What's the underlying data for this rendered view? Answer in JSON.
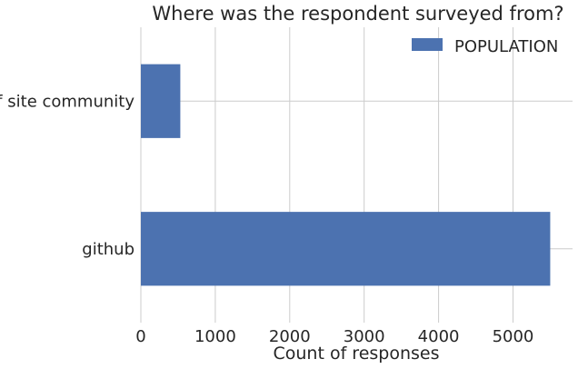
{
  "chart_data": {
    "type": "bar",
    "orientation": "horizontal",
    "title": "Where was the respondent surveyed from?",
    "xlabel": "Count of responses",
    "ylabel": "",
    "categories": [
      "off site community",
      "github"
    ],
    "series": [
      {
        "name": "POPULATION",
        "values": [
          530,
          5500
        ],
        "color": "#4c72b0"
      }
    ],
    "xlim": [
      0,
      5800
    ],
    "xticks": [
      0,
      1000,
      2000,
      3000,
      4000,
      5000
    ],
    "grid": true,
    "legend_position": "top-right"
  }
}
